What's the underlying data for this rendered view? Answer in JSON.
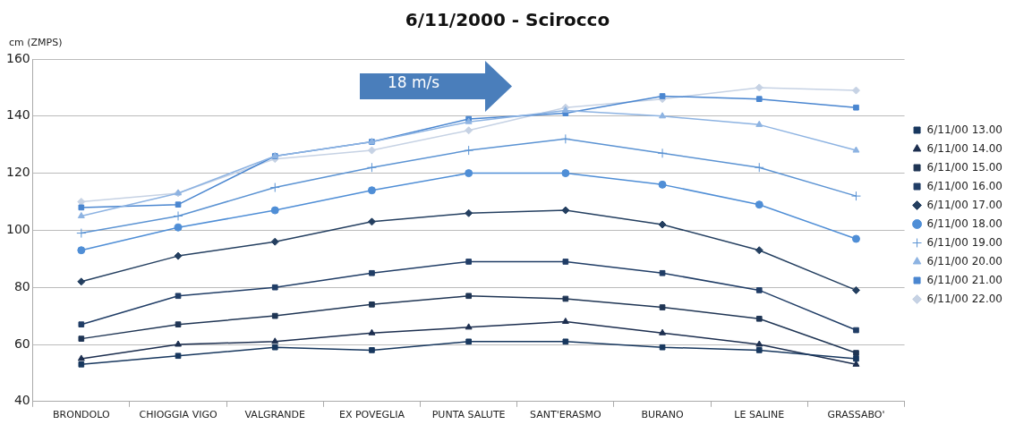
{
  "chart_data": {
    "type": "line",
    "title": "6/11/2000 - Scirocco",
    "ylabel": "cm (ZMPS)",
    "annotations": [
      "18 m/s"
    ],
    "categories": [
      "BRONDOLO",
      "CHIOGGIA VIGO",
      "VALGRANDE",
      "EX POVEGLIA",
      "PUNTA SALUTE",
      "SANT'ERASMO",
      "BURANO",
      "LE SALINE",
      "GRASSABO'"
    ],
    "ylim": [
      40,
      160
    ],
    "yticks": [
      40,
      60,
      80,
      100,
      120,
      140,
      160
    ],
    "grid": "y",
    "legend": "right",
    "line_style": "solid",
    "series": [
      {
        "name": "6/11/00 13.00",
        "color": "#17375e",
        "marker": "square",
        "values": [
          53,
          56,
          59,
          58,
          61,
          61,
          59,
          58,
          55
        ]
      },
      {
        "name": "6/11/00 14.00",
        "color": "#1c2e4f",
        "marker": "triangle",
        "values": [
          55,
          60,
          61,
          64,
          66,
          68,
          64,
          60,
          53
        ]
      },
      {
        "name": "6/11/00 15.00",
        "color": "#1f3554",
        "marker": "square",
        "values": [
          62,
          67,
          70,
          74,
          77,
          76,
          73,
          69,
          57
        ]
      },
      {
        "name": "6/11/00 16.00",
        "color": "#203d66",
        "marker": "square",
        "values": [
          67,
          77,
          80,
          85,
          89,
          89,
          85,
          79,
          65
        ]
      },
      {
        "name": "6/11/00 17.00",
        "color": "#243f60",
        "marker": "diamond",
        "values": [
          82,
          91,
          96,
          103,
          106,
          107,
          102,
          93,
          79
        ]
      },
      {
        "name": "6/11/00 18.00",
        "color": "#4f8ed6",
        "marker": "circle",
        "values": [
          93,
          101,
          107,
          114,
          120,
          120,
          116,
          109,
          97
        ]
      },
      {
        "name": "6/11/00 19.00",
        "color": "#5b93d3",
        "marker": "cross",
        "values": [
          99,
          105,
          115,
          122,
          128,
          132,
          127,
          122,
          112
        ]
      },
      {
        "name": "6/11/00 20.00",
        "color": "#8db3e2",
        "marker": "triangle",
        "values": [
          105,
          113,
          126,
          131,
          138,
          142,
          140,
          137,
          128
        ]
      },
      {
        "name": "6/11/00 21.00",
        "color": "#4a86d0",
        "marker": "square",
        "values": [
          108,
          109,
          126,
          131,
          139,
          141,
          147,
          146,
          143
        ]
      },
      {
        "name": "6/11/00 22.00",
        "color": "#c6d2e4",
        "marker": "diamond",
        "values": [
          110,
          113,
          125,
          128,
          135,
          143,
          146,
          150,
          149
        ]
      }
    ]
  }
}
